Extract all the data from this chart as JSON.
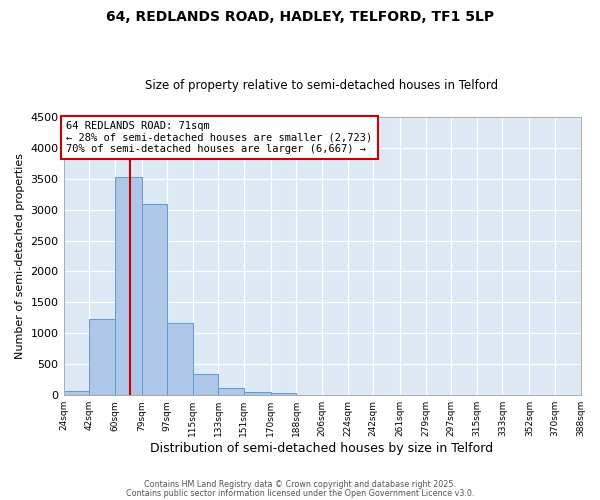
{
  "title1": "64, REDLANDS ROAD, HADLEY, TELFORD, TF1 5LP",
  "title2": "Size of property relative to semi-detached houses in Telford",
  "xlabel": "Distribution of semi-detached houses by size in Telford",
  "ylabel": "Number of semi-detached properties",
  "bin_labels": [
    "24sqm",
    "42sqm",
    "60sqm",
    "79sqm",
    "97sqm",
    "115sqm",
    "133sqm",
    "151sqm",
    "170sqm",
    "188sqm",
    "206sqm",
    "224sqm",
    "242sqm",
    "261sqm",
    "279sqm",
    "297sqm",
    "315sqm",
    "333sqm",
    "352sqm",
    "370sqm",
    "388sqm"
  ],
  "bin_edges": [
    24,
    42,
    60,
    79,
    97,
    115,
    133,
    151,
    170,
    188,
    206,
    224,
    242,
    261,
    279,
    297,
    315,
    333,
    352,
    370,
    388
  ],
  "bar_heights": [
    60,
    1230,
    3520,
    3090,
    1160,
    340,
    110,
    50,
    30,
    0,
    0,
    0,
    0,
    0,
    0,
    0,
    0,
    0,
    0,
    0
  ],
  "bar_color": "#aec6e8",
  "bar_edge_color": "#5b9bd5",
  "property_size": 71,
  "vline_color": "#cc0000",
  "annotation_line1": "64 REDLANDS ROAD: 71sqm",
  "annotation_line2": "← 28% of semi-detached houses are smaller (2,723)",
  "annotation_line3": "70% of semi-detached houses are larger (6,667) →",
  "annotation_box_color": "#ffffff",
  "annotation_box_edge": "#cc0000",
  "ylim": [
    0,
    4500
  ],
  "yticks": [
    0,
    500,
    1000,
    1500,
    2000,
    2500,
    3000,
    3500,
    4000,
    4500
  ],
  "xlim_min": 24,
  "xlim_max": 388,
  "bg_color": "#dce9f5",
  "grid_color": "#ffffff",
  "footer1": "Contains HM Land Registry data © Crown copyright and database right 2025.",
  "footer2": "Contains public sector information licensed under the Open Government Licence v3.0."
}
